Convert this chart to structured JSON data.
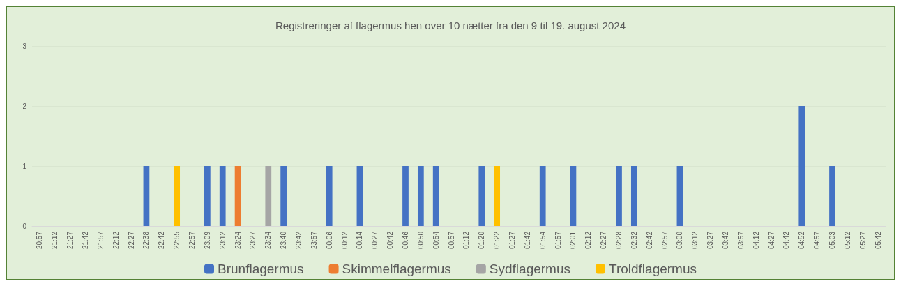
{
  "chart_data": {
    "type": "bar",
    "stacked": true,
    "title": "Registreringer af flagermus hen over 10 nætter fra den 9 til 19. august 2024",
    "categories": [
      "20:57",
      "21:12",
      "21:27",
      "21:42",
      "21:57",
      "22:12",
      "22:27",
      "22:38",
      "22:42",
      "22:55",
      "22:57",
      "23:09",
      "23:12",
      "23:24",
      "23:27",
      "23:34",
      "23:40",
      "23:42",
      "23:57",
      "00:06",
      "00:12",
      "00:14",
      "00:27",
      "00:42",
      "00:46",
      "00:50",
      "00:54",
      "00:57",
      "01:12",
      "01:20",
      "01:22",
      "01:27",
      "01:42",
      "01:54",
      "01:57",
      "02:01",
      "02:12",
      "02:27",
      "02:28",
      "02:32",
      "02:42",
      "02:57",
      "03:00",
      "03:12",
      "03:27",
      "03:42",
      "03:57",
      "04:12",
      "04:27",
      "04:42",
      "04:52",
      "04:57",
      "05:03",
      "05:12",
      "05:27",
      "05:42"
    ],
    "series": [
      {
        "name": "Brunflagermus",
        "color": "#4472c4",
        "values": [
          null,
          null,
          null,
          null,
          null,
          null,
          null,
          1,
          null,
          null,
          null,
          1,
          1,
          null,
          null,
          null,
          1,
          null,
          null,
          1,
          null,
          1,
          null,
          null,
          1,
          1,
          1,
          null,
          null,
          1,
          null,
          null,
          null,
          1,
          null,
          1,
          null,
          null,
          1,
          1,
          null,
          null,
          1,
          null,
          null,
          null,
          null,
          null,
          null,
          null,
          2,
          null,
          1,
          null,
          null,
          null
        ]
      },
      {
        "name": "Skimmelflagermus",
        "color": "#ed7d31",
        "values": [
          null,
          null,
          null,
          null,
          null,
          null,
          null,
          null,
          null,
          null,
          null,
          null,
          null,
          1,
          null,
          null,
          null,
          null,
          null,
          null,
          null,
          null,
          null,
          null,
          null,
          null,
          null,
          null,
          null,
          null,
          null,
          null,
          null,
          null,
          null,
          null,
          null,
          null,
          null,
          null,
          null,
          null,
          null,
          null,
          null,
          null,
          null,
          null,
          null,
          null,
          null,
          null,
          null,
          null,
          null,
          null
        ]
      },
      {
        "name": "Sydflagermus",
        "color": "#a5a5a5",
        "values": [
          null,
          null,
          null,
          null,
          null,
          null,
          null,
          null,
          null,
          null,
          null,
          null,
          null,
          null,
          null,
          1,
          null,
          null,
          null,
          null,
          null,
          null,
          null,
          null,
          null,
          null,
          null,
          null,
          null,
          null,
          null,
          null,
          null,
          null,
          null,
          null,
          null,
          null,
          null,
          null,
          null,
          null,
          null,
          null,
          null,
          null,
          null,
          null,
          null,
          null,
          null,
          null,
          null,
          null,
          null,
          null
        ]
      },
      {
        "name": "Troldflagermus",
        "color": "#ffc000",
        "values": [
          null,
          null,
          null,
          null,
          null,
          null,
          null,
          null,
          null,
          1,
          null,
          null,
          null,
          null,
          null,
          null,
          null,
          null,
          null,
          null,
          null,
          null,
          null,
          null,
          null,
          null,
          null,
          null,
          null,
          null,
          1,
          null,
          null,
          null,
          null,
          null,
          null,
          null,
          null,
          null,
          null,
          null,
          null,
          null,
          null,
          null,
          null,
          null,
          null,
          null,
          null,
          null,
          null,
          null,
          null,
          null
        ]
      }
    ],
    "ylim": [
      0,
      3
    ],
    "yticks": [
      0,
      1,
      2,
      3
    ],
    "grid": "y",
    "legend": "bottom"
  }
}
